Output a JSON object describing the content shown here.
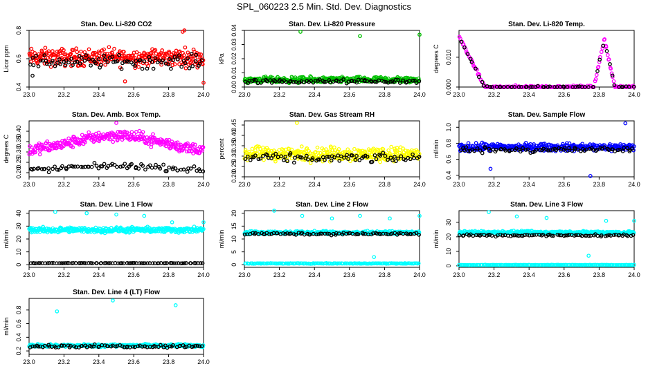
{
  "page_title": "SPL_060223  2.5 Min. Std. Dev. Diagnostics",
  "chart_data": [
    {
      "type": "scatter",
      "title": "Stan. Dev. Li-820 CO2",
      "ylabel": "Licor ppm",
      "xlim": [
        23.0,
        24.0
      ],
      "ylim": [
        0.4,
        0.8
      ],
      "xticks": [
        23.0,
        23.2,
        23.4,
        23.6,
        23.8,
        24.0
      ],
      "xtick_labels": [
        "23.0",
        "23.2",
        "23.4",
        "23.6",
        "23.8",
        "24.0"
      ],
      "yticks": [
        0.4,
        0.6,
        0.8
      ],
      "ytick_labels": [
        "0.4",
        "0.6",
        "0.8"
      ],
      "series": [
        {
          "color": "#ff0000",
          "n": 320,
          "base": 0.61,
          "amp": 0.09,
          "outliers": [
            [
              23.88,
              0.79
            ],
            [
              23.89,
              0.8
            ],
            [
              24.0,
              0.43
            ],
            [
              23.55,
              0.44
            ]
          ]
        },
        {
          "color": "#000000",
          "n": 90,
          "base": 0.58,
          "amp": 0.07,
          "outliers": [
            [
              23.02,
              0.48
            ]
          ]
        }
      ]
    },
    {
      "type": "scatter",
      "title": "Stan. Dev. Li-820 Pressure",
      "ylabel": "kPa",
      "xlim": [
        23.0,
        24.0
      ],
      "ylim": [
        0.0,
        0.04
      ],
      "xticks": [
        23.0,
        23.2,
        23.4,
        23.6,
        23.8,
        24.0
      ],
      "xtick_labels": [
        "23.0",
        "23.2",
        "23.4",
        "23.6",
        "23.8",
        "24.0"
      ],
      "yticks": [
        0.0,
        0.01,
        0.02,
        0.03,
        0.04
      ],
      "ytick_labels": [
        "0.00",
        "0.01",
        "0.02",
        "0.03",
        "0.04"
      ],
      "series": [
        {
          "color": "#00c000",
          "n": 360,
          "base": 0.005,
          "amp": 0.003,
          "outliers": [
            [
              23.32,
              0.039
            ],
            [
              23.66,
              0.036
            ],
            [
              24.0,
              0.037
            ]
          ]
        },
        {
          "color": "#000000",
          "n": 80,
          "base": 0.004,
          "amp": 0.002,
          "outliers": []
        }
      ]
    },
    {
      "type": "scatter",
      "title": "Stan. Dev. Li-820 Temp.",
      "ylabel": "degrees C",
      "xlim": [
        23.0,
        24.0
      ],
      "ylim": [
        0.0,
        0.019
      ],
      "xticks": [
        23.0,
        23.2,
        23.4,
        23.6,
        23.8,
        24.0
      ],
      "xtick_labels": [
        "23.0",
        "23.2",
        "23.4",
        "23.6",
        "23.8",
        "24.0"
      ],
      "yticks": [
        0.0,
        0.01
      ],
      "ytick_labels": [
        "0.000",
        "0.010"
      ],
      "shape": "peaks",
      "series": [
        {
          "color": "#ff00ff",
          "n": 200,
          "outliers": []
        },
        {
          "color": "#000000",
          "n": 60,
          "outliers": []
        }
      ]
    },
    {
      "type": "scatter",
      "title": "Stan. Dev. Amb. Box Temp.",
      "ylabel": "degrees C",
      "xlim": [
        23.0,
        24.0
      ],
      "ylim": [
        0.18,
        0.45
      ],
      "xticks": [
        23.0,
        23.2,
        23.4,
        23.6,
        23.8,
        24.0
      ],
      "xtick_labels": [
        "23.0",
        "23.2",
        "23.4",
        "23.6",
        "23.8",
        "24.0"
      ],
      "yticks": [
        0.2,
        0.25,
        0.3,
        0.35,
        0.4
      ],
      "ytick_labels": [
        "0.20",
        "0.25",
        "0.30",
        "0.35",
        "0.40"
      ],
      "shape": "hump",
      "series": [
        {
          "color": "#ff00ff",
          "n": 320,
          "base": 0.3,
          "amp": 0.04,
          "outliers": [
            [
              23.5,
              0.44
            ]
          ]
        },
        {
          "color": "#000000",
          "n": 80,
          "base": 0.21,
          "amp": 0.02,
          "outliers": []
        }
      ]
    },
    {
      "type": "scatter",
      "title": "Stan. Dev. Gas Stream RH",
      "ylabel": "percent",
      "xlim": [
        23.0,
        24.0
      ],
      "ylim": [
        0.2,
        0.47
      ],
      "xticks": [
        23.0,
        23.2,
        23.4,
        23.6,
        23.8,
        24.0
      ],
      "xtick_labels": [
        "23.0",
        "23.2",
        "23.4",
        "23.6",
        "23.8",
        "24.0"
      ],
      "yticks": [
        0.2,
        0.25,
        0.3,
        0.35,
        0.4,
        0.45
      ],
      "ytick_labels": [
        "0.20",
        "0.25",
        "0.30",
        "0.35",
        "0.40",
        "0.45"
      ],
      "series": [
        {
          "color": "#ffff00",
          "n": 340,
          "base": 0.31,
          "amp": 0.05,
          "outliers": [
            [
              23.3,
              0.46
            ]
          ]
        },
        {
          "color": "#000000",
          "n": 80,
          "base": 0.29,
          "amp": 0.03,
          "outliers": []
        }
      ]
    },
    {
      "type": "scatter",
      "title": "Stan. Dev. Sample Flow",
      "ylabel": "ml/min",
      "xlim": [
        23.0,
        24.0
      ],
      "ylim": [
        0.38,
        1.08
      ],
      "xticks": [
        23.0,
        23.2,
        23.4,
        23.6,
        23.8,
        24.0
      ],
      "xtick_labels": [
        "23.0",
        "23.2",
        "23.4",
        "23.6",
        "23.8",
        "24.0"
      ],
      "yticks": [
        0.4,
        0.6,
        0.8,
        1.0
      ],
      "ytick_labels": [
        "0.4",
        "0.6",
        "0.8",
        "1.0"
      ],
      "series": [
        {
          "color": "#0000ff",
          "n": 340,
          "base": 0.75,
          "amp": 0.07,
          "outliers": [
            [
              23.18,
              0.48
            ],
            [
              23.75,
              0.39
            ],
            [
              23.95,
              1.05
            ]
          ]
        },
        {
          "color": "#000000",
          "n": 80,
          "base": 0.72,
          "amp": 0.05,
          "outliers": []
        }
      ]
    },
    {
      "type": "scatter",
      "title": "Stan. Dev. Line 1 Flow",
      "ylabel": "ml/min",
      "xlim": [
        23.0,
        24.0
      ],
      "ylim": [
        -2,
        42
      ],
      "xticks": [
        23.0,
        23.2,
        23.4,
        23.6,
        23.8,
        24.0
      ],
      "xtick_labels": [
        "23.0",
        "23.2",
        "23.4",
        "23.6",
        "23.8",
        "24.0"
      ],
      "yticks": [
        0,
        10,
        20,
        30,
        40
      ],
      "ytick_labels": [
        "0",
        "10",
        "20",
        "30",
        "40"
      ],
      "series": [
        {
          "color": "#00ffff",
          "n": 360,
          "base": 27,
          "amp": 3,
          "outliers": [
            [
              23.15,
              41
            ],
            [
              23.33,
              40
            ],
            [
              23.5,
              39
            ],
            [
              23.66,
              38
            ],
            [
              23.82,
              33
            ],
            [
              24.0,
              33
            ]
          ]
        },
        {
          "color": "#000000",
          "n": 80,
          "base": 1.2,
          "amp": 0.2,
          "outliers": []
        }
      ]
    },
    {
      "type": "scatter",
      "title": "Stan. Dev. Line 2 Flow",
      "ylabel": "ml/min",
      "xlim": [
        23.0,
        24.0
      ],
      "ylim": [
        -1,
        21
      ],
      "xticks": [
        23.0,
        23.2,
        23.4,
        23.6,
        23.8,
        24.0
      ],
      "xtick_labels": [
        "23.0",
        "23.2",
        "23.4",
        "23.6",
        "23.8",
        "24.0"
      ],
      "yticks": [
        0,
        5,
        10,
        15,
        20
      ],
      "ytick_labels": [
        "0",
        "5",
        "10",
        "15",
        "20"
      ],
      "series": [
        {
          "color": "#00ffff",
          "n": 330,
          "base": 12.5,
          "amp": 0.8,
          "outliers": [
            [
              23.17,
              21
            ],
            [
              23.33,
              19
            ],
            [
              23.5,
              18
            ],
            [
              23.66,
              19
            ],
            [
              23.74,
              3
            ],
            [
              23.83,
              18
            ],
            [
              24.0,
              19
            ]
          ]
        },
        {
          "color": "#000000",
          "n": 80,
          "base": 12,
          "amp": 0.6,
          "outliers": []
        },
        {
          "color": "#00ffff",
          "n": 160,
          "base": 0.5,
          "amp": 0.15,
          "outliers": []
        }
      ]
    },
    {
      "type": "scatter",
      "title": "Stan. Dev. Line 3 Flow",
      "ylabel": "ml/min",
      "xlim": [
        23.0,
        24.0
      ],
      "ylim": [
        -1,
        38
      ],
      "xticks": [
        23.0,
        23.2,
        23.4,
        23.6,
        23.8,
        24.0
      ],
      "xtick_labels": [
        "23.0",
        "23.2",
        "23.4",
        "23.6",
        "23.8",
        "24.0"
      ],
      "yticks": [
        0,
        10,
        20,
        30
      ],
      "ytick_labels": [
        "0",
        "10",
        "20",
        "30"
      ],
      "series": [
        {
          "color": "#00ffff",
          "n": 330,
          "base": 23,
          "amp": 1.5,
          "outliers": [
            [
              23.17,
              37
            ],
            [
              23.33,
              34
            ],
            [
              23.5,
              33
            ],
            [
              23.74,
              7
            ],
            [
              23.84,
              31
            ],
            [
              24.0,
              31
            ]
          ]
        },
        {
          "color": "#000000",
          "n": 80,
          "base": 21,
          "amp": 1.2,
          "outliers": []
        },
        {
          "color": "#00ffff",
          "n": 160,
          "base": 0.6,
          "amp": 0.2,
          "outliers": []
        }
      ]
    },
    {
      "type": "scatter",
      "title": "Stan. Dev. Line 4 (LT) Flow",
      "ylabel": "ml/min",
      "xlim": [
        23.0,
        24.0
      ],
      "ylim": [
        0.15,
        0.97
      ],
      "xticks": [
        23.0,
        23.2,
        23.4,
        23.6,
        23.8,
        24.0
      ],
      "xtick_labels": [
        "23.0",
        "23.2",
        "23.4",
        "23.6",
        "23.8",
        "24.0"
      ],
      "yticks": [
        0.2,
        0.4,
        0.6,
        0.8
      ],
      "ytick_labels": [
        "0.2",
        "0.4",
        "0.6",
        "0.8"
      ],
      "series": [
        {
          "color": "#00ffff",
          "n": 330,
          "base": 0.28,
          "amp": 0.03,
          "outliers": [
            [
              23.16,
              0.78
            ],
            [
              23.48,
              0.94
            ],
            [
              23.84,
              0.87
            ]
          ]
        },
        {
          "color": "#000000",
          "n": 80,
          "base": 0.27,
          "amp": 0.03,
          "outliers": []
        }
      ]
    }
  ]
}
